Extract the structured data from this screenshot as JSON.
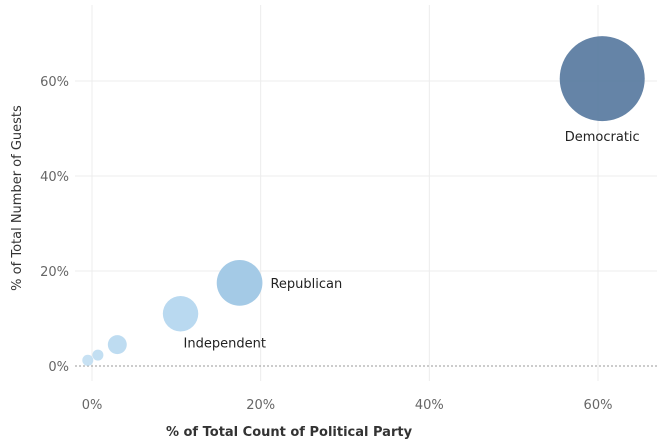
{
  "chart_data": {
    "type": "scatter",
    "xlabel": "% of Total Count of Political Party",
    "ylabel": "% of Total Number of Guests",
    "xlim": [
      -2,
      66
    ],
    "ylim": [
      -3,
      74
    ],
    "x_ticks": [
      0,
      20,
      40,
      60
    ],
    "x_tick_labels": [
      "0%",
      "20%",
      "40%",
      "60%"
    ],
    "y_ticks": [
      0,
      20,
      40,
      60
    ],
    "y_tick_labels": [
      "0%",
      "20%",
      "40%",
      "60%"
    ],
    "grid": true,
    "points": [
      {
        "label": "Democratic",
        "x": 60.5,
        "y": 60.5,
        "size": 60.5,
        "color": "#587aa0",
        "label_pos": "below"
      },
      {
        "label": "Republican",
        "x": 17.5,
        "y": 17.5,
        "size": 17.5,
        "color": "#9cc5e4",
        "label_pos": "right"
      },
      {
        "label": "Independent",
        "x": 10.5,
        "y": 11.0,
        "size": 10.5,
        "color": "#b3d6ef",
        "label_pos": "below-right"
      },
      {
        "label": "",
        "x": 3.0,
        "y": 4.5,
        "size": 3.0,
        "color": "#b8d9f0",
        "label_pos": "none"
      },
      {
        "label": "",
        "x": 0.7,
        "y": 2.3,
        "size": 0.7,
        "color": "#bedcf1",
        "label_pos": "none"
      },
      {
        "label": "",
        "x": -0.5,
        "y": 1.2,
        "size": 0.3,
        "color": "#c2def2",
        "label_pos": "none"
      }
    ]
  }
}
